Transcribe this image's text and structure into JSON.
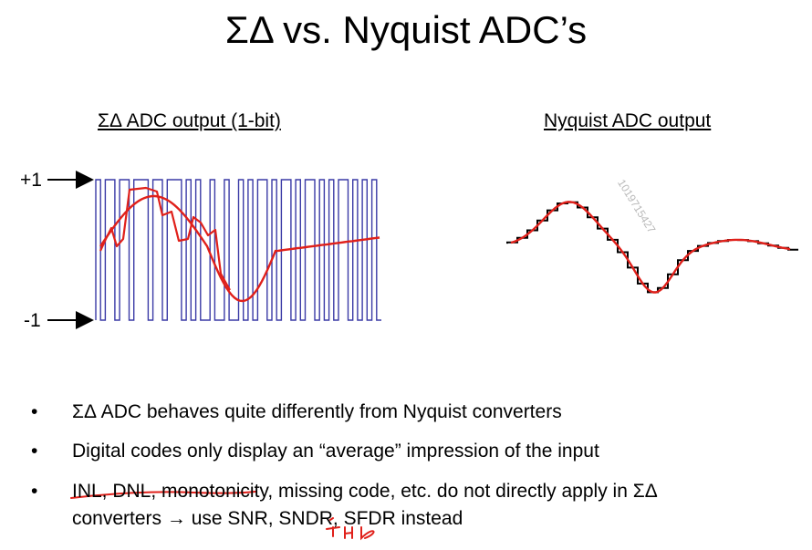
{
  "slide": {
    "title": "ΣΔ vs. Nyquist ADC’s",
    "watermark": "1019715427"
  },
  "left_panel": {
    "title": "ΣΔ ADC output (1-bit)",
    "level_high": "+1",
    "level_low": "-1",
    "square_wave_color": "#3a3aa6",
    "average_color": "#e0201a"
  },
  "right_panel": {
    "title": "Nyquist ADC output",
    "staircase_color": "#000000",
    "curve_color": "#e0201a"
  },
  "bullets": {
    "marker": "•",
    "item1": "ΣΔ ADC behaves quite differently from Nyquist converters",
    "item2": "Digital codes only display an “average” impression of the input",
    "item3_line1": "INL, DNL, monotonicity, missing code, etc. do not directly apply in ΣΔ",
    "item3_line2": "converters → use SNR, SNDR, SFDR instead",
    "annotation": "THD",
    "annotation_color": "#e0201a"
  }
}
